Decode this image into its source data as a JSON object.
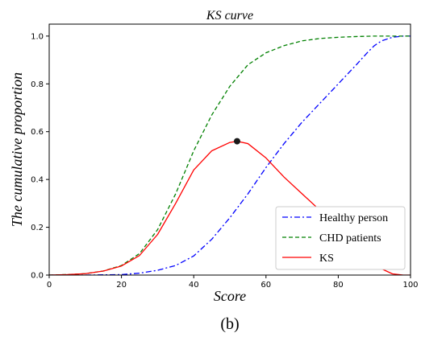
{
  "chart_data": {
    "type": "line",
    "title": "KS curve",
    "xlabel": "Score",
    "ylabel": "The cumulative proportion",
    "caption": "(b)",
    "xlim": [
      0,
      100
    ],
    "ylim": [
      0,
      1.05
    ],
    "xticks": [
      "0",
      "20",
      "40",
      "60",
      "80",
      "100"
    ],
    "yticks": [
      "0.0",
      "0.2",
      "0.4",
      "0.6",
      "0.8",
      "1.0"
    ],
    "grid": false,
    "legend_position": "lower-right",
    "series": [
      {
        "name": "Healthy person",
        "color": "#0000ff",
        "dash": "dashdot",
        "x": [
          0,
          10,
          20,
          25,
          30,
          35,
          40,
          45,
          50,
          55,
          60,
          65,
          70,
          75,
          80,
          85,
          88,
          90,
          92,
          95,
          98,
          100
        ],
        "y": [
          0,
          0,
          0.002,
          0.008,
          0.02,
          0.04,
          0.08,
          0.15,
          0.24,
          0.34,
          0.45,
          0.55,
          0.64,
          0.72,
          0.8,
          0.88,
          0.93,
          0.96,
          0.98,
          0.995,
          1.0,
          1.0
        ]
      },
      {
        "name": "CHD patients",
        "color": "#008000",
        "dash": "dashed",
        "x": [
          0,
          5,
          10,
          15,
          20,
          25,
          30,
          35,
          40,
          45,
          50,
          55,
          60,
          65,
          70,
          75,
          80,
          85,
          90,
          95,
          100
        ],
        "y": [
          0,
          0.002,
          0.006,
          0.017,
          0.04,
          0.09,
          0.19,
          0.34,
          0.52,
          0.67,
          0.79,
          0.88,
          0.93,
          0.96,
          0.98,
          0.99,
          0.995,
          0.998,
          1.0,
          1.0,
          1.0
        ]
      },
      {
        "name": "KS",
        "color": "#ff0000",
        "dash": "solid",
        "x": [
          0,
          5,
          10,
          15,
          20,
          25,
          30,
          35,
          40,
          45,
          50,
          52,
          55,
          60,
          65,
          70,
          75,
          80,
          85,
          90,
          95,
          98,
          100
        ],
        "y": [
          0,
          0.002,
          0.006,
          0.017,
          0.038,
          0.082,
          0.17,
          0.3,
          0.44,
          0.52,
          0.555,
          0.56,
          0.55,
          0.49,
          0.41,
          0.34,
          0.27,
          0.19,
          0.11,
          0.04,
          0.005,
          0.0,
          0.0
        ]
      }
    ],
    "markers": [
      {
        "x": 52,
        "y": 0.56,
        "color": "#1a1a1a"
      }
    ]
  }
}
